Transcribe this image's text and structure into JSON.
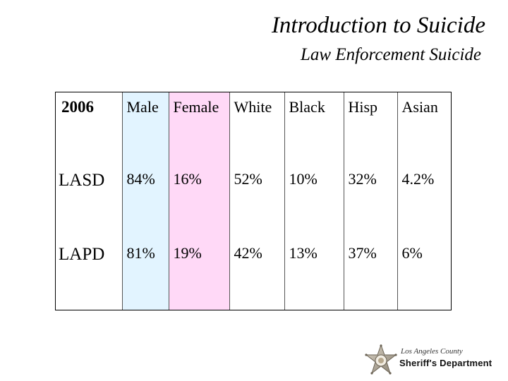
{
  "slide": {
    "title": "Introduction to Suicide",
    "subtitle": "Law Enforcement Suicide"
  },
  "table": {
    "header": {
      "year": "2006",
      "columns": [
        "Male",
        "Female",
        "White",
        "Black",
        "Hisp",
        "Asian"
      ]
    },
    "rows": [
      {
        "label": "LASD",
        "values": [
          "84%",
          "16%",
          "52%",
          "10%",
          "32%",
          "4.2%"
        ]
      },
      {
        "label": "LAPD",
        "values": [
          "81%",
          "19%",
          "42%",
          "13%",
          "37%",
          "6%"
        ]
      }
    ],
    "colors": {
      "male_column": "#e2f4ff",
      "female_column": "#ffd9f7"
    }
  },
  "logo": {
    "icon": "sheriff-star-icon",
    "line1": "Los Angeles County",
    "line2": "Sheriff's Department"
  }
}
